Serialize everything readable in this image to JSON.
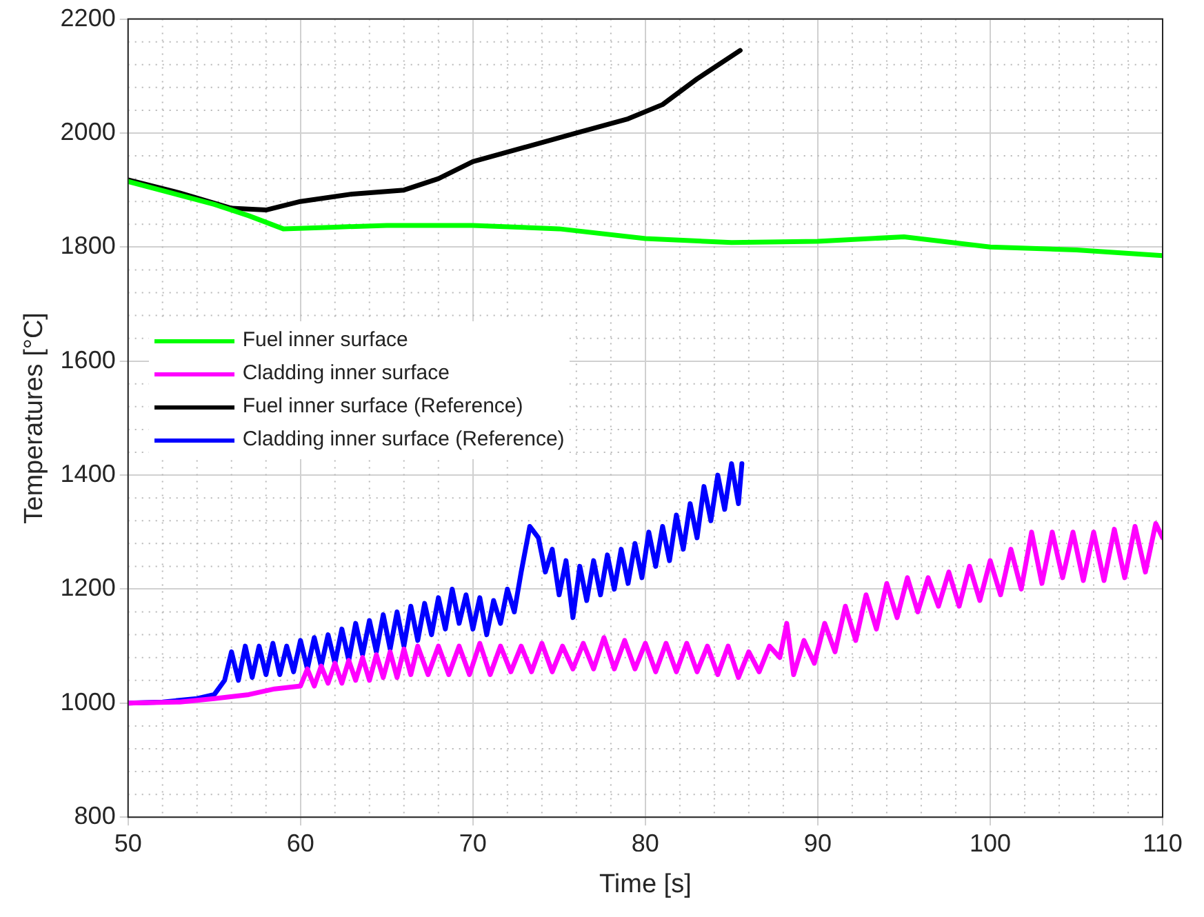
{
  "chart_data": {
    "type": "line",
    "xlabel": "Time [s]",
    "ylabel": "Temperatures [°C]",
    "xlim": [
      50,
      110
    ],
    "xticks": [
      50,
      60,
      70,
      80,
      90,
      100,
      110
    ],
    "ylim": [
      800,
      2200
    ],
    "yticks": [
      800,
      1000,
      1200,
      1400,
      1600,
      1800,
      2000,
      2200
    ],
    "grid": true,
    "legend": "left",
    "marker": "none",
    "line_style": "solid",
    "series": [
      {
        "name": "Fuel inner surface",
        "color": "#00ff00",
        "x": [
          50,
          55,
          57,
          59,
          62,
          65,
          70,
          75,
          80,
          85,
          90,
          95,
          100,
          105,
          110
        ],
        "values": [
          1915,
          1875,
          1855,
          1832,
          1835,
          1838,
          1838,
          1832,
          1815,
          1808,
          1810,
          1818,
          1800,
          1795,
          1785
        ]
      },
      {
        "name": "Cladding inner surface",
        "color": "#ff00ff",
        "x": [
          50,
          53,
          55,
          57,
          58.5,
          60,
          60.4,
          60.8,
          61.2,
          61.6,
          62.0,
          62.4,
          62.8,
          63.2,
          63.6,
          64.0,
          64.4,
          64.8,
          65.2,
          65.6,
          66.0,
          66.4,
          66.8,
          67.4,
          68.0,
          68.6,
          69.2,
          69.8,
          70.4,
          71.0,
          71.6,
          72.2,
          72.8,
          73.4,
          74.0,
          74.6,
          75.2,
          75.8,
          76.4,
          77.0,
          77.6,
          78.2,
          78.8,
          79.4,
          80.0,
          80.6,
          81.2,
          81.8,
          82.4,
          83.0,
          83.6,
          84.2,
          84.8,
          85.4,
          86.0,
          86.6,
          87.2,
          87.8,
          88.2,
          88.6,
          89.2,
          89.8,
          90.4,
          91.0,
          91.6,
          92.2,
          92.8,
          93.4,
          94.0,
          94.6,
          95.2,
          95.8,
          96.4,
          97.0,
          97.6,
          98.2,
          98.8,
          99.4,
          100.0,
          100.6,
          101.2,
          101.8,
          102.4,
          103.0,
          103.6,
          104.2,
          104.8,
          105.4,
          106.0,
          106.6,
          107.2,
          107.8,
          108.4,
          109.0,
          109.6,
          110
        ],
        "values": [
          1000,
          1002,
          1008,
          1015,
          1025,
          1030,
          1060,
          1030,
          1065,
          1035,
          1070,
          1035,
          1075,
          1040,
          1080,
          1040,
          1085,
          1045,
          1090,
          1045,
          1095,
          1050,
          1100,
          1050,
          1100,
          1050,
          1100,
          1050,
          1105,
          1050,
          1100,
          1055,
          1100,
          1055,
          1105,
          1055,
          1100,
          1060,
          1105,
          1060,
          1115,
          1060,
          1110,
          1060,
          1105,
          1055,
          1105,
          1055,
          1105,
          1055,
          1100,
          1050,
          1100,
          1045,
          1090,
          1055,
          1100,
          1080,
          1140,
          1050,
          1110,
          1070,
          1140,
          1090,
          1170,
          1110,
          1190,
          1130,
          1210,
          1150,
          1220,
          1160,
          1220,
          1170,
          1230,
          1170,
          1240,
          1180,
          1250,
          1190,
          1270,
          1200,
          1300,
          1210,
          1300,
          1220,
          1300,
          1215,
          1300,
          1215,
          1305,
          1220,
          1310,
          1230,
          1315,
          1290
        ]
      },
      {
        "name": "Fuel inner surface (Reference)",
        "color": "#000000",
        "x": [
          50,
          53,
          56,
          58,
          60,
          63,
          66,
          68,
          70,
          73,
          76,
          79,
          81,
          83,
          85.5
        ],
        "values": [
          1918,
          1895,
          1868,
          1865,
          1880,
          1893,
          1900,
          1920,
          1950,
          1975,
          2000,
          2025,
          2050,
          2095,
          2145
        ]
      },
      {
        "name": "Cladding inner surface (Reference)",
        "color": "#0000ff",
        "x": [
          50,
          52,
          54,
          55,
          55.6,
          56.0,
          56.4,
          56.8,
          57.2,
          57.6,
          58.0,
          58.4,
          58.8,
          59.2,
          59.6,
          60.0,
          60.4,
          60.8,
          61.2,
          61.6,
          62.0,
          62.4,
          62.8,
          63.2,
          63.6,
          64.0,
          64.4,
          64.8,
          65.2,
          65.6,
          66.0,
          66.4,
          66.8,
          67.2,
          67.6,
          68.0,
          68.4,
          68.8,
          69.2,
          69.6,
          70.0,
          70.4,
          70.8,
          71.2,
          71.6,
          72.0,
          72.4,
          72.8,
          73.3,
          73.8,
          74.2,
          74.6,
          75.0,
          75.4,
          75.8,
          76.2,
          76.6,
          77.0,
          77.4,
          77.8,
          78.2,
          78.6,
          79.0,
          79.4,
          79.8,
          80.2,
          80.6,
          81.0,
          81.4,
          81.8,
          82.2,
          82.6,
          83.0,
          83.4,
          83.8,
          84.2,
          84.6,
          85.0,
          85.4,
          85.6
        ],
        "values": [
          1000,
          1002,
          1008,
          1015,
          1040,
          1090,
          1040,
          1100,
          1045,
          1100,
          1050,
          1105,
          1050,
          1100,
          1055,
          1110,
          1060,
          1115,
          1065,
          1120,
          1070,
          1130,
          1075,
          1140,
          1085,
          1145,
          1090,
          1155,
          1095,
          1160,
          1100,
          1170,
          1110,
          1175,
          1120,
          1185,
          1130,
          1200,
          1140,
          1190,
          1130,
          1185,
          1120,
          1180,
          1140,
          1200,
          1160,
          1230,
          1310,
          1290,
          1230,
          1270,
          1190,
          1250,
          1150,
          1240,
          1180,
          1250,
          1190,
          1260,
          1200,
          1270,
          1210,
          1280,
          1220,
          1300,
          1240,
          1310,
          1250,
          1330,
          1270,
          1350,
          1290,
          1380,
          1320,
          1400,
          1340,
          1420,
          1350,
          1420
        ]
      }
    ]
  }
}
